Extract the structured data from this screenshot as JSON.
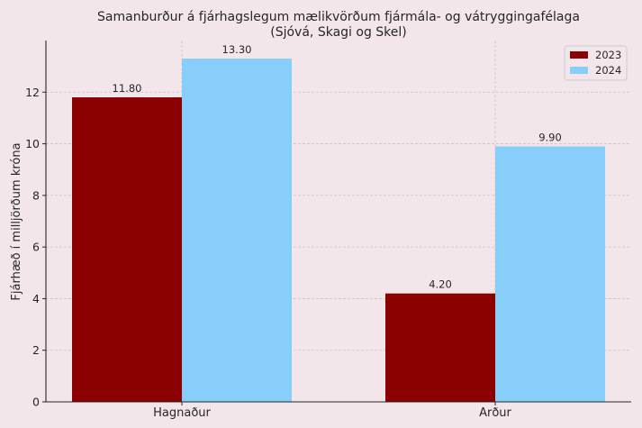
{
  "chart_data": {
    "type": "bar",
    "title": "Samanburður á fjárhagslegum mælikvörðum fjármála- og vátryggingafélaga",
    "subtitle": "(Sjóvá, Skagi og Skel)",
    "xlabel": "",
    "ylabel": "Fjárhæð í milljörðum króna",
    "categories": [
      "Hagnaður",
      "Arður"
    ],
    "series": [
      {
        "name": "2023",
        "values": [
          11.8,
          4.2
        ],
        "color": "#8b0000",
        "labels": [
          "11.80",
          "4.20"
        ]
      },
      {
        "name": "2024",
        "values": [
          13.3,
          9.9
        ],
        "color": "#87cefa",
        "labels": [
          "13.30",
          "9.90"
        ]
      }
    ],
    "ylim": [
      0,
      14
    ],
    "yticks": [
      0,
      2,
      4,
      6,
      8,
      10,
      12
    ],
    "grid": true,
    "legend": "top-right"
  }
}
